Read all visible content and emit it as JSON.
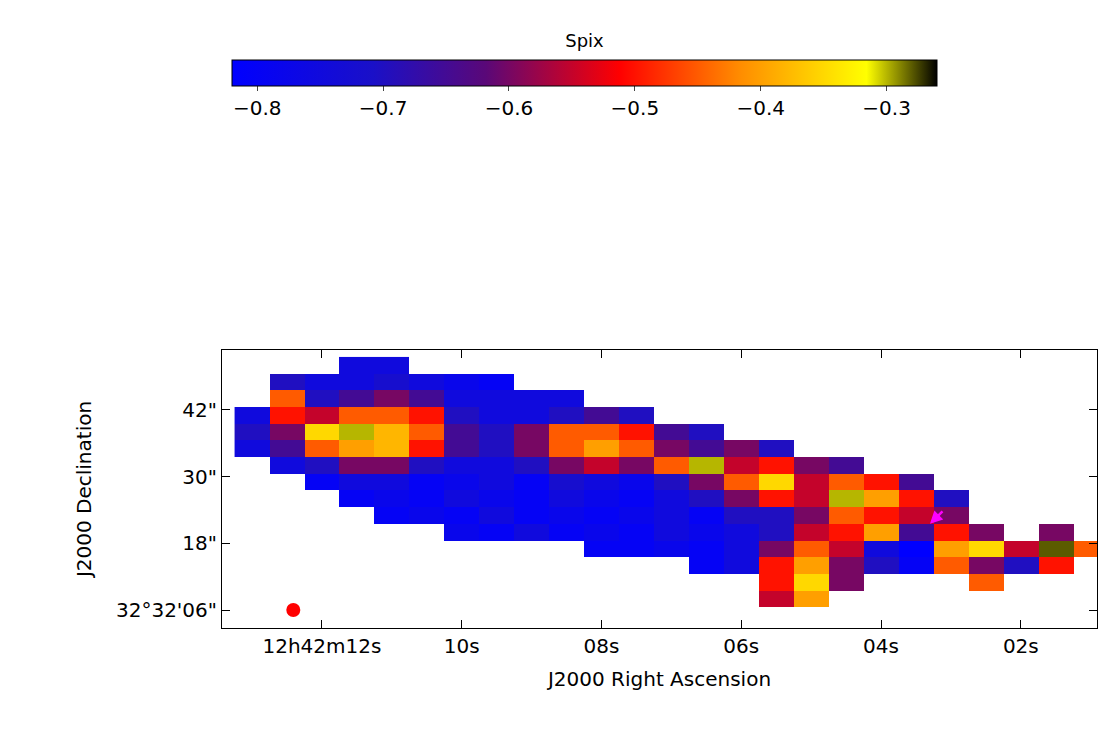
{
  "chart_data": {
    "type": "heatmap",
    "x_label": "J2000 Right Ascension",
    "y_label": "J2000 Declination",
    "x": [
      13.0,
      12.5,
      12.0,
      11.5,
      11.0,
      10.5,
      10.0,
      9.5,
      9.0,
      8.5,
      8.0,
      7.5,
      7.0,
      6.5,
      6.0,
      5.5,
      5.0,
      4.5,
      4.0,
      3.5,
      3.0,
      2.5,
      2.0,
      1.5,
      1.0
    ],
    "y": [
      5,
      8,
      11,
      14,
      17,
      20,
      23,
      26,
      29,
      32,
      35,
      38,
      41,
      44,
      47,
      50
    ],
    "cells": [
      [
        null,
        null,
        null,
        null,
        null,
        null,
        null,
        null,
        null,
        null,
        null,
        null,
        null,
        null,
        null,
        null,
        null,
        null,
        null,
        null,
        null,
        null,
        null,
        null,
        null
      ],
      [
        null,
        null,
        null,
        null,
        null,
        null,
        null,
        null,
        null,
        null,
        null,
        null,
        null,
        null,
        null,
        -0.55,
        -0.4,
        null,
        null,
        null,
        null,
        null,
        null,
        null,
        null
      ],
      [
        null,
        null,
        null,
        null,
        null,
        null,
        null,
        null,
        null,
        null,
        null,
        null,
        null,
        null,
        null,
        -0.5,
        -0.35,
        -0.6,
        null,
        null,
        null,
        -0.45,
        null,
        null,
        null
      ],
      [
        null,
        null,
        null,
        null,
        null,
        null,
        null,
        null,
        null,
        null,
        null,
        null,
        null,
        -0.8,
        -0.75,
        -0.5,
        -0.4,
        -0.6,
        -0.7,
        -0.8,
        -0.45,
        -0.6,
        -0.7,
        -0.5,
        null
      ],
      [
        null,
        null,
        null,
        null,
        null,
        null,
        null,
        null,
        null,
        null,
        -0.8,
        -0.8,
        -0.78,
        -0.8,
        -0.75,
        -0.6,
        -0.45,
        -0.55,
        -0.75,
        -0.82,
        -0.4,
        -0.35,
        -0.55,
        -0.28,
        -0.45
      ],
      [
        null,
        null,
        null,
        null,
        null,
        null,
        -0.78,
        -0.8,
        -0.75,
        -0.8,
        -0.78,
        -0.8,
        -0.75,
        -0.78,
        -0.75,
        -0.7,
        -0.55,
        -0.5,
        -0.4,
        -0.65,
        -0.5,
        -0.6,
        null,
        -0.6,
        null
      ],
      [
        null,
        null,
        null,
        null,
        -0.8,
        -0.78,
        -0.8,
        -0.75,
        -0.8,
        -0.78,
        -0.8,
        -0.78,
        -0.75,
        -0.8,
        -0.7,
        -0.7,
        -0.6,
        -0.45,
        -0.5,
        -0.55,
        -0.6,
        null,
        null,
        null,
        null
      ],
      [
        null,
        null,
        null,
        -0.8,
        -0.78,
        -0.8,
        -0.75,
        -0.78,
        -0.8,
        -0.75,
        -0.78,
        -0.8,
        -0.75,
        -0.7,
        -0.6,
        -0.5,
        -0.55,
        -0.3,
        -0.4,
        -0.5,
        -0.7,
        null,
        null,
        null,
        null
      ],
      [
        null,
        null,
        -0.8,
        -0.75,
        -0.75,
        -0.8,
        -0.78,
        -0.75,
        -0.8,
        -0.72,
        -0.75,
        -0.78,
        -0.7,
        -0.6,
        -0.45,
        -0.35,
        -0.55,
        -0.45,
        -0.5,
        -0.65,
        null,
        null,
        null,
        null,
        null
      ],
      [
        null,
        -0.75,
        -0.7,
        -0.6,
        -0.6,
        -0.7,
        -0.75,
        -0.75,
        -0.7,
        -0.6,
        -0.55,
        -0.6,
        -0.45,
        -0.3,
        -0.55,
        -0.5,
        -0.6,
        -0.65,
        null,
        null,
        null,
        null,
        null,
        null,
        null
      ],
      [
        -0.75,
        -0.65,
        -0.45,
        -0.4,
        -0.38,
        -0.5,
        -0.65,
        -0.7,
        -0.6,
        -0.45,
        -0.4,
        -0.45,
        -0.6,
        -0.65,
        -0.6,
        -0.7,
        null,
        null,
        null,
        null,
        null,
        null,
        null,
        null,
        null
      ],
      [
        -0.7,
        -0.6,
        -0.35,
        -0.3,
        -0.38,
        -0.45,
        -0.65,
        -0.7,
        -0.6,
        -0.45,
        -0.45,
        -0.5,
        -0.65,
        -0.7,
        null,
        null,
        null,
        null,
        null,
        null,
        null,
        null,
        null,
        null,
        null
      ],
      [
        -0.75,
        -0.5,
        -0.55,
        -0.45,
        -0.45,
        -0.5,
        -0.7,
        -0.75,
        -0.75,
        -0.7,
        -0.65,
        -0.7,
        null,
        null,
        null,
        null,
        null,
        null,
        null,
        null,
        null,
        null,
        null,
        null,
        null
      ],
      [
        null,
        -0.45,
        -0.7,
        -0.65,
        -0.6,
        -0.65,
        -0.75,
        -0.75,
        -0.75,
        -0.75,
        null,
        null,
        null,
        null,
        null,
        null,
        null,
        null,
        null,
        null,
        null,
        null,
        null,
        null,
        null
      ],
      [
        null,
        -0.7,
        -0.75,
        -0.75,
        -0.72,
        -0.75,
        -0.78,
        -0.8,
        null,
        null,
        null,
        null,
        null,
        null,
        null,
        null,
        null,
        null,
        null,
        null,
        null,
        null,
        null,
        null,
        null
      ],
      [
        null,
        null,
        null,
        -0.75,
        -0.75,
        null,
        null,
        null,
        null,
        null,
        null,
        null,
        null,
        null,
        null,
        null,
        null,
        null,
        null,
        null,
        null,
        null,
        null,
        null,
        null
      ]
    ],
    "colorbar": {
      "title": "Spix",
      "range": [
        -0.82,
        -0.26
      ],
      "ticks": [
        -0.8,
        -0.7,
        -0.6,
        -0.5,
        -0.4,
        -0.3
      ]
    },
    "xlim": [
      13.43,
      0.91
    ],
    "xticks": [
      {
        "value": 12,
        "label": "12h42m12s"
      },
      {
        "value": 10,
        "label": "10s"
      },
      {
        "value": 8,
        "label": "08s"
      },
      {
        "value": 6,
        "label": "06s"
      },
      {
        "value": 4,
        "label": "04s"
      },
      {
        "value": 2,
        "label": "02s"
      }
    ],
    "ylim": [
      2.77,
      52.75
    ],
    "yticks": [
      {
        "value": 6,
        "label": "32°32'06\""
      },
      {
        "value": 18,
        "label": "18\""
      },
      {
        "value": 30,
        "label": "30\""
      },
      {
        "value": 42,
        "label": "42\""
      }
    ],
    "beam": {
      "x": 12.41,
      "y": 6,
      "color": "#ff0000"
    },
    "arrow": {
      "x": 3.3,
      "y": 21.5,
      "color": "#ff00ff"
    }
  }
}
